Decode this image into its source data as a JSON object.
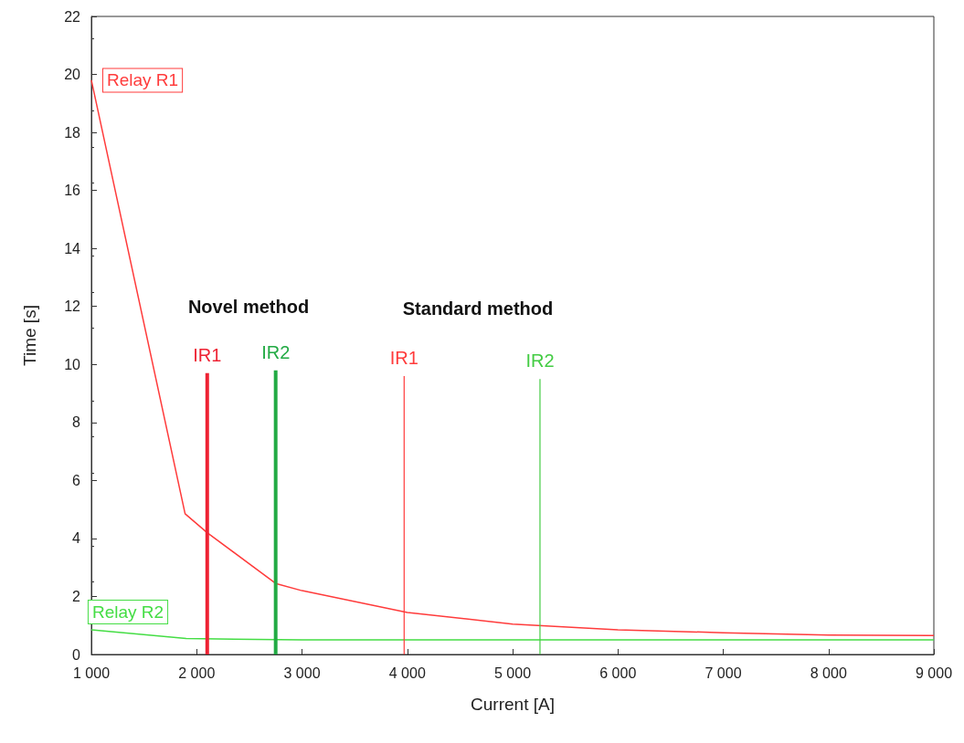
{
  "chart_data": {
    "type": "line",
    "xlabel": "Current [A]",
    "ylabel": "Time [s]",
    "xlim": [
      1000,
      9000
    ],
    "ylim": [
      0,
      22
    ],
    "xticks": [
      {
        "value": 1000,
        "label": "1 000"
      },
      {
        "value": 2000,
        "label": "2 000"
      },
      {
        "value": 3000,
        "label": "3 000"
      },
      {
        "value": 4000,
        "label": "4 000"
      },
      {
        "value": 5000,
        "label": "5 000"
      },
      {
        "value": 6000,
        "label": "6 000"
      },
      {
        "value": 7000,
        "label": "7 000"
      },
      {
        "value": 8000,
        "label": "8 000"
      },
      {
        "value": 9000,
        "label": "9 000"
      }
    ],
    "yticks": [
      0,
      2,
      4,
      6,
      8,
      10,
      12,
      14,
      16,
      18,
      20,
      22
    ],
    "grid": false,
    "legend": false,
    "annotations": [
      "Novel method",
      "Standard method"
    ],
    "series": [
      {
        "name": "Relay R1",
        "color": "#ff3b3b",
        "x": [
          1000,
          1890,
          2100,
          2750,
          3000,
          4000,
          5000,
          6000,
          7000,
          8000,
          9000
        ],
        "values": [
          19.8,
          4.85,
          4.2,
          2.45,
          2.2,
          1.45,
          1.05,
          0.85,
          0.75,
          0.67,
          0.65
        ]
      },
      {
        "name": "Relay R2",
        "color": "#44dd44",
        "x": [
          1000,
          1900,
          3000,
          5000,
          9000
        ],
        "values": [
          0.85,
          0.55,
          0.5,
          0.5,
          0.5
        ]
      },
      {
        "name": "IR1",
        "color": "#ee2233",
        "x": [
          2100,
          2100
        ],
        "values": [
          0,
          9.7
        ]
      },
      {
        "name": "IR2",
        "color": "#22aa44",
        "x": [
          2750,
          2750
        ],
        "values": [
          0,
          9.8
        ]
      },
      {
        "name": "IR1",
        "color": "#ff3b3b",
        "x": [
          3970,
          3970
        ],
        "values": [
          0,
          9.6
        ]
      },
      {
        "name": "IR2",
        "color": "#44cc44",
        "x": [
          5260,
          5260
        ],
        "values": [
          0,
          9.5
        ]
      }
    ]
  }
}
